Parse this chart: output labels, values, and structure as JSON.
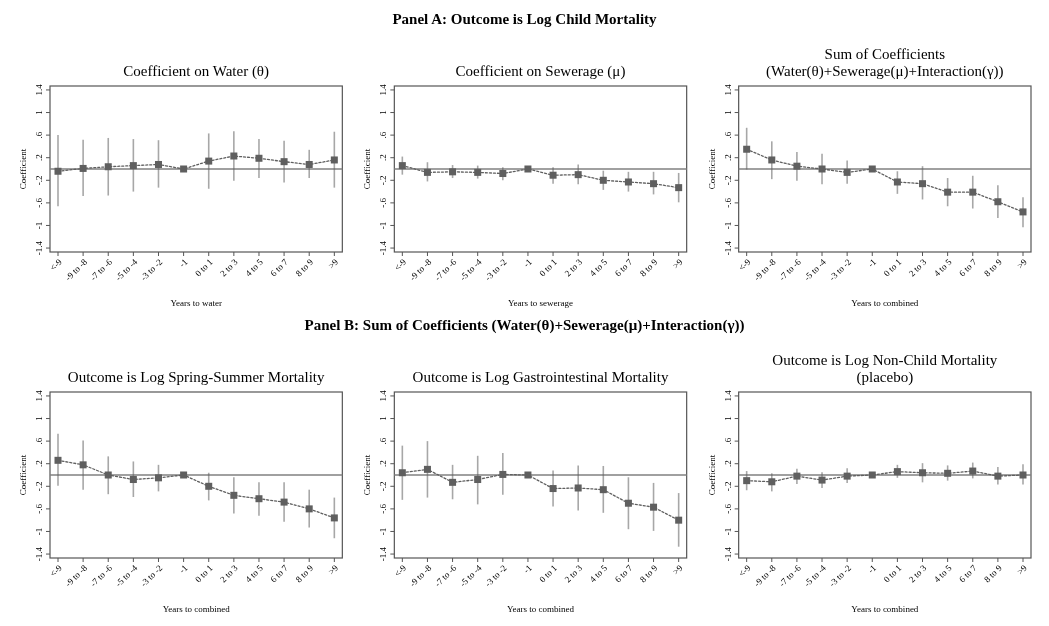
{
  "chart_data": [
    {
      "type": "line",
      "title": "Coefficient on Water (θ)",
      "xlabel": "Years to water",
      "ylabel": "Coefficient",
      "annotations": [
        "Panel A: Outcome is Log Child Mortality"
      ],
      "categories": [
        "<-9",
        "-9 to -8",
        "-7 to -6",
        "-5 to -4",
        "-3 to -2",
        "-1",
        "0 to 1",
        "2 to 3",
        "4 to 5",
        "6 to 7",
        "8 to 9",
        ">9"
      ],
      "ylim": [
        -1.47,
        1.47
      ],
      "yticks": [
        {
          "value": -1.4,
          "label": "-1.4"
        },
        {
          "value": -1,
          "label": "-1"
        },
        {
          "value": -0.6,
          "label": "-.6"
        },
        {
          "value": -0.2,
          "label": "-.2"
        },
        {
          "value": 0.2,
          "label": ".2"
        },
        {
          "value": 0.6,
          "label": ".6"
        },
        {
          "value": 1,
          "label": "1"
        },
        {
          "value": 1.4,
          "label": "1.4"
        }
      ],
      "marker": "square",
      "line_style": "dotted",
      "ref_lines": [
        {
          "axis": "y",
          "value": 0,
          "color": "#808080"
        }
      ],
      "series": [
        {
          "color": "#5f5f5f",
          "values": [
            -0.04,
            0.01,
            0.04,
            0.06,
            0.08,
            0,
            0.14,
            0.23,
            0.19,
            0.13,
            0.08,
            0.16
          ],
          "errors": [
            [
              -0.66,
              0.6
            ],
            [
              -0.48,
              0.52
            ],
            [
              -0.47,
              0.55
            ],
            [
              -0.4,
              0.53
            ],
            [
              -0.33,
              0.51
            ],
            null,
            [
              -0.35,
              0.63
            ],
            [
              -0.21,
              0.67
            ],
            [
              -0.16,
              0.53
            ],
            [
              -0.24,
              0.5
            ],
            [
              -0.16,
              0.34
            ],
            [
              -0.33,
              0.66
            ]
          ]
        }
      ]
    },
    {
      "type": "line",
      "title": "Coefficient on Sewerage (μ)",
      "xlabel": "Years to sewerage",
      "ylabel": "Coefficient",
      "categories": [
        "<-9",
        "-9 to -8",
        "-7 to -6",
        "-5 to -4",
        "-3 to -2",
        "-1",
        "0 to 1",
        "2 to 3",
        "4 to 5",
        "6 to 7",
        "8 to 9",
        ">9"
      ],
      "ylim": [
        -1.47,
        1.47
      ],
      "yticks": [
        {
          "value": -1.4,
          "label": "-1.4"
        },
        {
          "value": -1,
          "label": "-1"
        },
        {
          "value": -0.6,
          "label": "-.6"
        },
        {
          "value": -0.2,
          "label": "-.2"
        },
        {
          "value": 0.2,
          "label": ".2"
        },
        {
          "value": 0.6,
          "label": ".6"
        },
        {
          "value": 1,
          "label": "1"
        },
        {
          "value": 1.4,
          "label": "1.4"
        }
      ],
      "marker": "square",
      "line_style": "dotted",
      "ref_lines": [
        {
          "axis": "y",
          "value": 0,
          "color": "#808080"
        }
      ],
      "series": [
        {
          "color": "#5f5f5f",
          "values": [
            0.06,
            -0.06,
            -0.05,
            -0.06,
            -0.08,
            0,
            -0.11,
            -0.1,
            -0.2,
            -0.23,
            -0.26,
            -0.33
          ],
          "errors": [
            [
              -0.1,
              0.22
            ],
            [
              -0.22,
              0.12
            ],
            [
              -0.16,
              0.07
            ],
            [
              -0.17,
              0.06
            ],
            [
              -0.2,
              0.03
            ],
            null,
            [
              -0.26,
              0.03
            ],
            [
              -0.27,
              0.08
            ],
            [
              -0.37,
              -0.03
            ],
            [
              -0.4,
              -0.05
            ],
            [
              -0.45,
              -0.05
            ],
            [
              -0.59,
              -0.07
            ]
          ]
        }
      ]
    },
    {
      "type": "line",
      "title": "Sum of Coefficients\n(Water(θ)+Sewerage(μ)+Interaction(γ))",
      "xlabel": "Years to combined",
      "ylabel": "Coefficient",
      "categories": [
        "<-9",
        "-9 to -8",
        "-7 to -6",
        "-5 to -4",
        "-3 to -2",
        "-1",
        "0 to 1",
        "2 to 3",
        "4 to 5",
        "6 to 7",
        "8 to 9",
        ">9"
      ],
      "ylim": [
        -1.47,
        1.47
      ],
      "yticks": [
        {
          "value": -1.4,
          "label": "-1.4"
        },
        {
          "value": -1,
          "label": "-1"
        },
        {
          "value": -0.6,
          "label": "-.6"
        },
        {
          "value": -0.2,
          "label": "-.2"
        },
        {
          "value": 0.2,
          "label": ".2"
        },
        {
          "value": 0.6,
          "label": ".6"
        },
        {
          "value": 1,
          "label": "1"
        },
        {
          "value": 1.4,
          "label": "1.4"
        }
      ],
      "marker": "square",
      "line_style": "dotted",
      "ref_lines": [
        {
          "axis": "y",
          "value": 0,
          "color": "#808080"
        }
      ],
      "series": [
        {
          "color": "#5f5f5f",
          "values": [
            0.35,
            0.16,
            0.05,
            0,
            -0.06,
            0,
            -0.23,
            -0.26,
            -0.41,
            -0.41,
            -0.58,
            -0.76
          ],
          "errors": [
            [
              -0.01,
              0.73
            ],
            [
              -0.18,
              0.49
            ],
            [
              -0.21,
              0.3
            ],
            [
              -0.27,
              0.27
            ],
            [
              -0.26,
              0.15
            ],
            null,
            [
              -0.44,
              -0.04
            ],
            [
              -0.54,
              0.05
            ],
            [
              -0.66,
              -0.16
            ],
            [
              -0.7,
              -0.12
            ],
            [
              -0.87,
              -0.29
            ],
            [
              -1.03,
              -0.5
            ]
          ]
        }
      ]
    },
    {
      "type": "line",
      "title": "Outcome is Log Spring-Summer Mortality",
      "xlabel": "Years to combined",
      "ylabel": "Coefficient",
      "annotations": [
        "Panel B: Sum of Coefficients (Water(θ)+Sewerage(μ)+Interaction(γ))"
      ],
      "categories": [
        "<-9",
        "-9 to -8",
        "-7 to -6",
        "-5 to -4",
        "-3 to -2",
        "-1",
        "0 to 1",
        "2 to 3",
        "4 to 5",
        "6 to 7",
        "8 to 9",
        ">9"
      ],
      "ylim": [
        -1.47,
        1.47
      ],
      "yticks": [
        {
          "value": -1.4,
          "label": "-1.4"
        },
        {
          "value": -1,
          "label": "-1"
        },
        {
          "value": -0.6,
          "label": "-.6"
        },
        {
          "value": -0.2,
          "label": "-.2"
        },
        {
          "value": 0.2,
          "label": ".2"
        },
        {
          "value": 0.6,
          "label": ".6"
        },
        {
          "value": 1,
          "label": "1"
        },
        {
          "value": 1.4,
          "label": "1.4"
        }
      ],
      "marker": "square",
      "line_style": "dotted",
      "ref_lines": [
        {
          "axis": "y",
          "value": 0,
          "color": "#808080"
        }
      ],
      "series": [
        {
          "color": "#5f5f5f",
          "values": [
            0.26,
            0.18,
            0,
            -0.08,
            -0.05,
            0,
            -0.2,
            -0.36,
            -0.42,
            -0.48,
            -0.6,
            -0.76
          ],
          "errors": [
            [
              -0.19,
              0.73
            ],
            [
              -0.26,
              0.61
            ],
            [
              -0.34,
              0.33
            ],
            [
              -0.39,
              0.24
            ],
            [
              -0.29,
              0.18
            ],
            null,
            [
              -0.45,
              0.04
            ],
            [
              -0.68,
              -0.04
            ],
            [
              -0.72,
              -0.13
            ],
            [
              -0.83,
              -0.13
            ],
            [
              -0.93,
              -0.26
            ],
            [
              -1.12,
              -0.4
            ]
          ]
        }
      ]
    },
    {
      "type": "line",
      "title": "Outcome is Log Gastrointestinal Mortality",
      "xlabel": "Years to combined",
      "ylabel": "Coefficient",
      "categories": [
        "<-9",
        "-9 to -8",
        "-7 to -6",
        "-5 to -4",
        "-3 to -2",
        "-1",
        "0 to 1",
        "2 to 3",
        "4 to 5",
        "6 to 7",
        "8 to 9",
        ">9"
      ],
      "ylim": [
        -1.47,
        1.47
      ],
      "yticks": [
        {
          "value": -1.4,
          "label": "-1.4"
        },
        {
          "value": -1,
          "label": "-1"
        },
        {
          "value": -0.6,
          "label": "-.6"
        },
        {
          "value": -0.2,
          "label": "-.2"
        },
        {
          "value": 0.2,
          "label": ".2"
        },
        {
          "value": 0.6,
          "label": ".6"
        },
        {
          "value": 1,
          "label": "1"
        },
        {
          "value": 1.4,
          "label": "1.4"
        }
      ],
      "marker": "square",
      "line_style": "dotted",
      "ref_lines": [
        {
          "axis": "y",
          "value": 0,
          "color": "#808080"
        }
      ],
      "series": [
        {
          "color": "#5f5f5f",
          "values": [
            0.04,
            0.1,
            -0.13,
            -0.08,
            0.01,
            0,
            -0.24,
            -0.23,
            -0.26,
            -0.5,
            -0.57,
            -0.8
          ],
          "errors": [
            [
              -0.44,
              0.52
            ],
            [
              -0.4,
              0.6
            ],
            [
              -0.43,
              0.18
            ],
            [
              -0.52,
              0.34
            ],
            [
              -0.35,
              0.39
            ],
            null,
            [
              -0.56,
              0.08
            ],
            [
              -0.63,
              0.17
            ],
            [
              -0.67,
              0.16
            ],
            [
              -0.96,
              -0.04
            ],
            [
              -0.99,
              -0.14
            ],
            [
              -1.27,
              -0.32
            ]
          ]
        }
      ]
    },
    {
      "type": "line",
      "title": "Outcome is Log Non-Child Mortality\n(placebo)",
      "xlabel": "Years to combined",
      "ylabel": "Coefficient",
      "categories": [
        "<-9",
        "-9 to -8",
        "-7 to -6",
        "-5 to -4",
        "-3 to -2",
        "-1",
        "0 to 1",
        "2 to 3",
        "4 to 5",
        "6 to 7",
        "8 to 9",
        ">9"
      ],
      "ylim": [
        -1.47,
        1.47
      ],
      "yticks": [
        {
          "value": -1.4,
          "label": "-1.4"
        },
        {
          "value": -1,
          "label": "-1"
        },
        {
          "value": -0.6,
          "label": "-.6"
        },
        {
          "value": -0.2,
          "label": "-.2"
        },
        {
          "value": 0.2,
          "label": ".2"
        },
        {
          "value": 0.6,
          "label": ".6"
        },
        {
          "value": 1,
          "label": "1"
        },
        {
          "value": 1.4,
          "label": "1.4"
        }
      ],
      "marker": "square",
      "line_style": "dotted",
      "ref_lines": [
        {
          "axis": "y",
          "value": 0,
          "color": "#808080"
        }
      ],
      "series": [
        {
          "color": "#5f5f5f",
          "values": [
            -0.1,
            -0.12,
            -0.02,
            -0.09,
            -0.02,
            0,
            0.06,
            0.04,
            0.03,
            0.07,
            -0.02,
            0
          ],
          "errors": [
            [
              -0.27,
              0.07
            ],
            [
              -0.29,
              0.03
            ],
            [
              -0.16,
              0.11
            ],
            [
              -0.23,
              0.05
            ],
            [
              -0.14,
              0.12
            ],
            null,
            [
              -0.05,
              0.18
            ],
            [
              -0.13,
              0.21
            ],
            [
              -0.1,
              0.17
            ],
            [
              -0.06,
              0.22
            ],
            [
              -0.17,
              0.14
            ],
            [
              -0.17,
              0.19
            ]
          ]
        }
      ]
    }
  ]
}
